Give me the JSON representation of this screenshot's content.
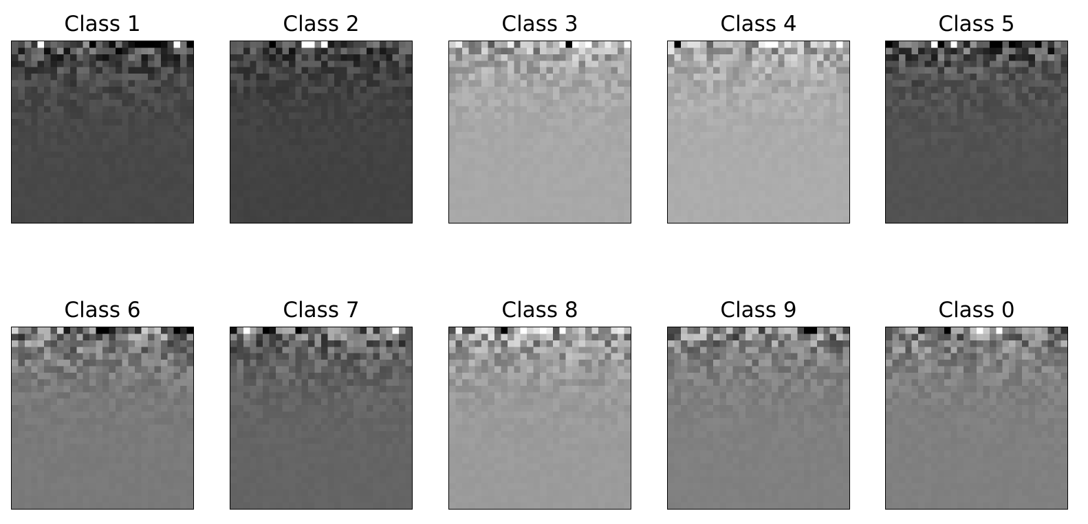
{
  "chart_data": [
    {
      "type": "heatmap",
      "title": "Class 1",
      "base_gray": 72,
      "top_variance": 165
    },
    {
      "type": "heatmap",
      "title": "Class 2",
      "base_gray": 66,
      "top_variance": 120
    },
    {
      "type": "heatmap",
      "title": "Class 3",
      "base_gray": 168,
      "top_variance": 155
    },
    {
      "type": "heatmap",
      "title": "Class 4",
      "base_gray": 172,
      "top_variance": 150
    },
    {
      "type": "heatmap",
      "title": "Class 5",
      "base_gray": 82,
      "top_variance": 170
    },
    {
      "type": "heatmap",
      "title": "Class 6",
      "base_gray": 122,
      "top_variance": 190
    },
    {
      "type": "heatmap",
      "title": "Class 7",
      "base_gray": 100,
      "top_variance": 175
    },
    {
      "type": "heatmap",
      "title": "Class 8",
      "base_gray": 155,
      "top_variance": 185
    },
    {
      "type": "heatmap",
      "title": "Class 9",
      "base_gray": 128,
      "top_variance": 170
    },
    {
      "type": "heatmap",
      "title": "Class 0",
      "base_gray": 128,
      "top_variance": 170
    }
  ]
}
